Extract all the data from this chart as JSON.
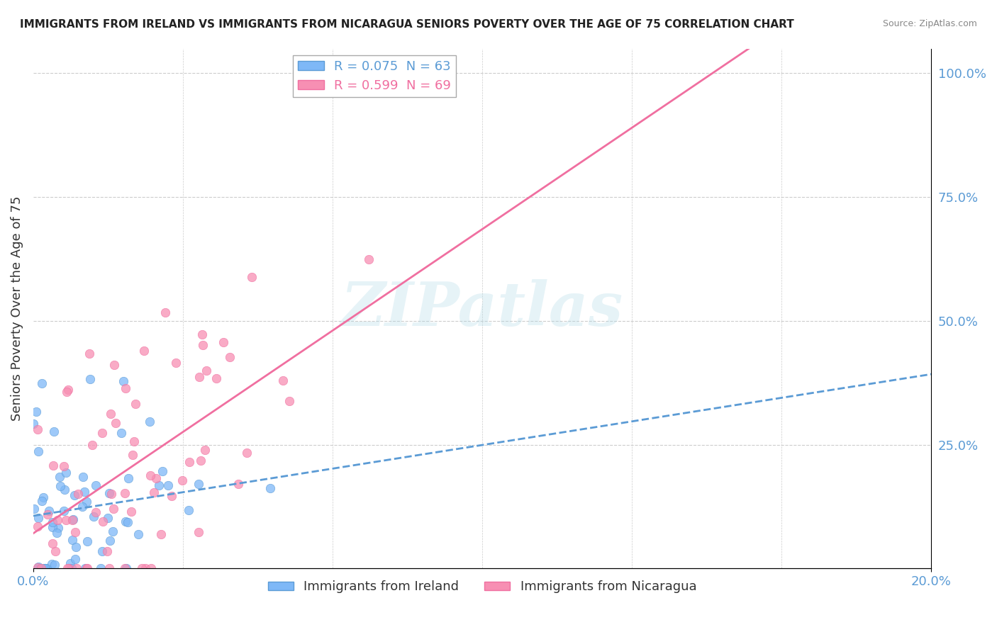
{
  "title": "IMMIGRANTS FROM IRELAND VS IMMIGRANTS FROM NICARAGUA SENIORS POVERTY OVER THE AGE OF 75 CORRELATION CHART",
  "source": "Source: ZipAtlas.com",
  "ylabel": "Seniors Poverty Over the Age of 75",
  "ireland_color": "#7eb8f7",
  "nicaragua_color": "#f78fb3",
  "ireland_line_color": "#5b9bd5",
  "nicaragua_line_color": "#f06fa0",
  "ireland_R": 0.075,
  "ireland_N": 63,
  "nicaragua_R": 0.599,
  "nicaragua_N": 69,
  "legend_ireland_label": "R = 0.075  N = 63",
  "legend_nicaragua_label": "R = 0.599  N = 69",
  "watermark": "ZIPatlas",
  "background_color": "#ffffff",
  "grid_color": "#cccccc",
  "title_color": "#222222",
  "axis_label_color": "#5b9bd5"
}
